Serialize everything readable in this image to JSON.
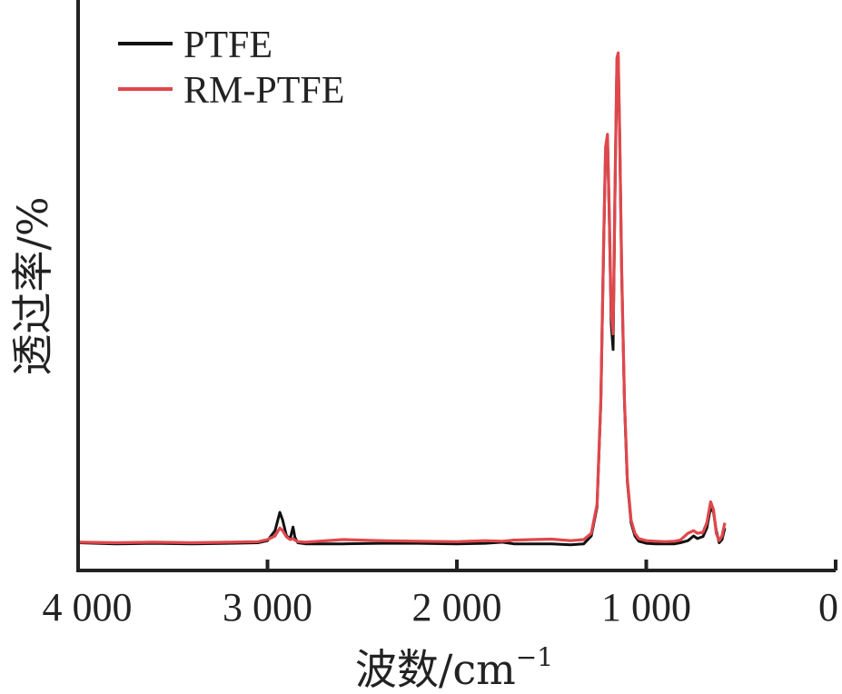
{
  "chart_data": {
    "type": "line",
    "xlabel": "波数/cm",
    "xlabel_sup": "−1",
    "ylabel": "透过率/%",
    "xlim": [
      4000,
      0
    ],
    "x_reversed": true,
    "y_ticks_shown": false,
    "x_ticks": [
      {
        "value": 4000,
        "label": "4 000"
      },
      {
        "value": 3000,
        "label": "3 000"
      },
      {
        "value": 2000,
        "label": "2 000"
      },
      {
        "value": 1000,
        "label": "1 000"
      },
      {
        "value": 0,
        "label": "0"
      }
    ],
    "ylim": [
      0,
      100
    ],
    "grid": false,
    "legend_position": "top-left",
    "series": [
      {
        "name": "PTFE",
        "color": "#111111",
        "points": [
          [
            4000,
            3.2
          ],
          [
            3800,
            3.0
          ],
          [
            3600,
            3.1
          ],
          [
            3400,
            3.0
          ],
          [
            3200,
            3.1
          ],
          [
            3050,
            3.2
          ],
          [
            3000,
            3.6
          ],
          [
            2960,
            5.5
          ],
          [
            2935,
            9.0
          ],
          [
            2920,
            7.5
          ],
          [
            2900,
            4.5
          ],
          [
            2880,
            4.0
          ],
          [
            2865,
            6.2
          ],
          [
            2855,
            4.2
          ],
          [
            2840,
            3.2
          ],
          [
            2800,
            3.0
          ],
          [
            2600,
            3.0
          ],
          [
            2400,
            3.1
          ],
          [
            2200,
            3.1
          ],
          [
            2000,
            3.0
          ],
          [
            1850,
            3.1
          ],
          [
            1760,
            3.3
          ],
          [
            1700,
            3.0
          ],
          [
            1600,
            3.0
          ],
          [
            1500,
            3.0
          ],
          [
            1400,
            2.8
          ],
          [
            1330,
            3.0
          ],
          [
            1290,
            4.5
          ],
          [
            1260,
            10.0
          ],
          [
            1240,
            30.0
          ],
          [
            1225,
            60.0
          ],
          [
            1215,
            78.0
          ],
          [
            1205,
            80.5
          ],
          [
            1195,
            65.0
          ],
          [
            1185,
            45.0
          ],
          [
            1175,
            40.0
          ],
          [
            1165,
            70.0
          ],
          [
            1155,
            95.0
          ],
          [
            1148,
            96.0
          ],
          [
            1140,
            80.0
          ],
          [
            1130,
            55.0
          ],
          [
            1115,
            30.0
          ],
          [
            1100,
            15.0
          ],
          [
            1080,
            7.0
          ],
          [
            1060,
            4.5
          ],
          [
            1040,
            3.5
          ],
          [
            1000,
            3.1
          ],
          [
            950,
            3.0
          ],
          [
            900,
            3.0
          ],
          [
            850,
            3.0
          ],
          [
            820,
            3.2
          ],
          [
            780,
            3.6
          ],
          [
            750,
            4.5
          ],
          [
            730,
            4.0
          ],
          [
            700,
            4.4
          ],
          [
            680,
            6.0
          ],
          [
            660,
            10.0
          ],
          [
            645,
            9.0
          ],
          [
            630,
            5.5
          ],
          [
            615,
            3.2
          ],
          [
            600,
            3.8
          ],
          [
            585,
            6.0
          ]
        ]
      },
      {
        "name": "RM-PTFE",
        "color": "#e0474c",
        "points": [
          [
            4000,
            3.3
          ],
          [
            3800,
            3.2
          ],
          [
            3600,
            3.3
          ],
          [
            3400,
            3.2
          ],
          [
            3200,
            3.3
          ],
          [
            3050,
            3.4
          ],
          [
            3000,
            3.8
          ],
          [
            2960,
            4.5
          ],
          [
            2935,
            6.0
          ],
          [
            2920,
            5.5
          ],
          [
            2900,
            4.3
          ],
          [
            2880,
            3.8
          ],
          [
            2865,
            4.0
          ],
          [
            2855,
            3.7
          ],
          [
            2840,
            3.4
          ],
          [
            2800,
            3.3
          ],
          [
            2600,
            3.8
          ],
          [
            2400,
            3.6
          ],
          [
            2200,
            3.5
          ],
          [
            2000,
            3.4
          ],
          [
            1850,
            3.6
          ],
          [
            1760,
            3.5
          ],
          [
            1700,
            3.7
          ],
          [
            1600,
            3.8
          ],
          [
            1500,
            3.9
          ],
          [
            1400,
            3.6
          ],
          [
            1330,
            3.8
          ],
          [
            1290,
            5.0
          ],
          [
            1260,
            10.5
          ],
          [
            1240,
            30.5
          ],
          [
            1225,
            60.5
          ],
          [
            1215,
            78.5
          ],
          [
            1205,
            81.0
          ],
          [
            1195,
            66.0
          ],
          [
            1185,
            47.0
          ],
          [
            1175,
            43.0
          ],
          [
            1165,
            71.0
          ],
          [
            1155,
            95.5
          ],
          [
            1148,
            96.5
          ],
          [
            1140,
            80.5
          ],
          [
            1130,
            55.5
          ],
          [
            1115,
            30.5
          ],
          [
            1100,
            15.5
          ],
          [
            1080,
            7.5
          ],
          [
            1060,
            5.0
          ],
          [
            1040,
            4.0
          ],
          [
            1000,
            3.6
          ],
          [
            950,
            3.5
          ],
          [
            900,
            3.4
          ],
          [
            850,
            3.5
          ],
          [
            820,
            3.7
          ],
          [
            780,
            5.0
          ],
          [
            750,
            5.5
          ],
          [
            730,
            5.0
          ],
          [
            700,
            5.2
          ],
          [
            680,
            7.0
          ],
          [
            660,
            11.0
          ],
          [
            645,
            9.5
          ],
          [
            630,
            5.0
          ],
          [
            615,
            3.6
          ],
          [
            600,
            4.5
          ],
          [
            585,
            7.0
          ]
        ]
      }
    ]
  }
}
